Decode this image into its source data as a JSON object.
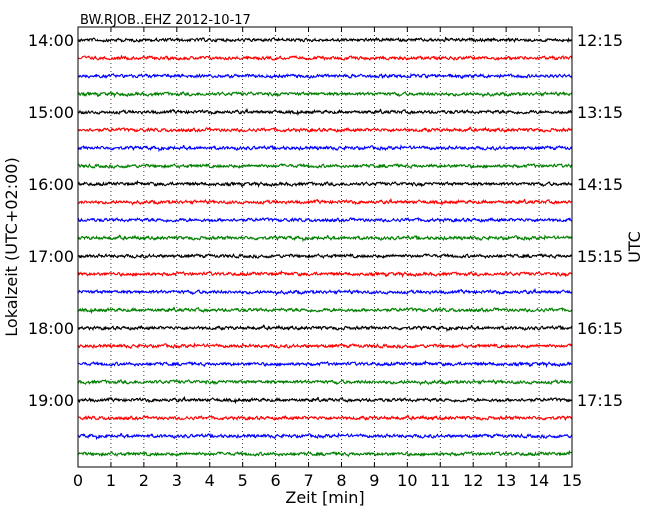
{
  "chart_data": {
    "type": "line",
    "title": "BW.RJOB..EHZ 2012-10-17",
    "xlabel": "Zeit  [min]",
    "ylabel_left": "Lokalzeit (UTC+02:00)",
    "ylabel_right": "UTC",
    "x_ticks": [
      "0",
      "1",
      "2",
      "3",
      "4",
      "5",
      "6",
      "7",
      "8",
      "9",
      "10",
      "11",
      "12",
      "13",
      "14",
      "15"
    ],
    "xlim": [
      0,
      15
    ],
    "grid": "vertical dotted",
    "trace_count": 24,
    "trace_colors": [
      "#000000",
      "#ff0000",
      "#0000ff",
      "#008000"
    ],
    "left_ticks": [
      "14:00",
      "15:00",
      "16:00",
      "17:00",
      "18:00",
      "19:00"
    ],
    "right_ticks": [
      "12:15",
      "13:15",
      "14:15",
      "15:15",
      "16:15",
      "17:15"
    ]
  }
}
